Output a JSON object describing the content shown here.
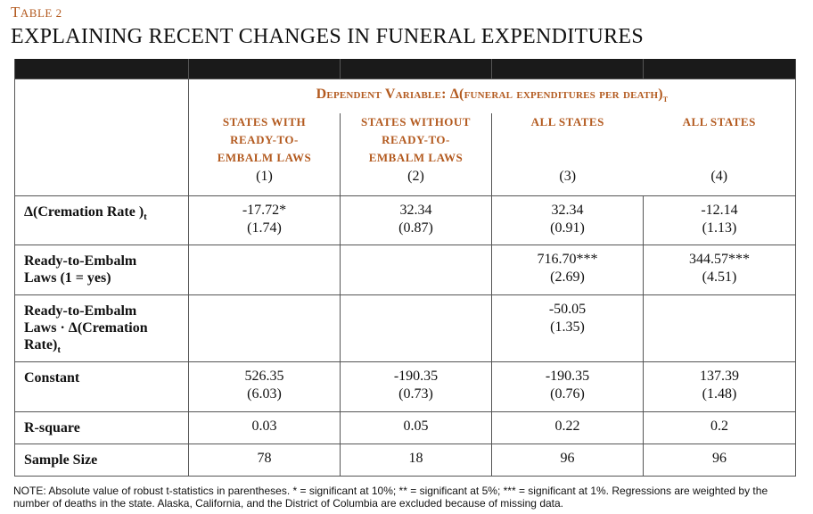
{
  "label": {
    "first": "T",
    "rest": "ABLE 2"
  },
  "title": "EXPLAINING RECENT CHANGES IN FUNERAL EXPENDITURES",
  "dependent_variable": {
    "text": "Dependent Variable: Δ(funeral expenditures per death)",
    "sub": "t"
  },
  "columns": [
    {
      "header": [
        "STATES WITH",
        "READY-TO-",
        "EMBALM LAWS"
      ],
      "number": "(1)"
    },
    {
      "header": [
        "STATES WITHOUT",
        "READY-TO-",
        "EMBALM LAWS"
      ],
      "number": "(2)"
    },
    {
      "header": [
        "ALL STATES"
      ],
      "number": "(3)"
    },
    {
      "header": [
        "ALL STATES"
      ],
      "number": "(4)"
    }
  ],
  "rows": [
    {
      "label_lines": [
        "Δ(Cremation Rate )"
      ],
      "label_sub": "t",
      "cells": [
        [
          "-17.72*",
          "(1.74)"
        ],
        [
          "32.34",
          "(0.87)"
        ],
        [
          "32.34",
          "(0.91)"
        ],
        [
          "-12.14",
          "(1.13)"
        ]
      ]
    },
    {
      "label_lines": [
        "Ready-to-Embalm",
        "Laws (1 = yes)"
      ],
      "label_sub": "",
      "cells": [
        [
          "",
          ""
        ],
        [
          "",
          ""
        ],
        [
          "716.70***",
          "(2.69)"
        ],
        [
          "344.57***",
          "(4.51)"
        ]
      ]
    },
    {
      "label_lines": [
        "Ready-to-Embalm",
        "Laws · Δ(Cremation",
        "Rate)"
      ],
      "label_sub": "t",
      "cells": [
        [
          "",
          ""
        ],
        [
          "",
          ""
        ],
        [
          "-50.05",
          "(1.35)"
        ],
        [
          "",
          ""
        ]
      ]
    },
    {
      "label_lines": [
        "Constant"
      ],
      "label_sub": "",
      "cells": [
        [
          "526.35",
          "(6.03)"
        ],
        [
          "-190.35",
          "(0.73)"
        ],
        [
          "-190.35",
          "(0.76)"
        ],
        [
          "137.39",
          "(1.48)"
        ]
      ]
    },
    {
      "label_lines": [
        "R-square"
      ],
      "label_sub": "",
      "cells": [
        [
          "0.03"
        ],
        [
          "0.05"
        ],
        [
          "0.22"
        ],
        [
          "0.2"
        ]
      ]
    },
    {
      "label_lines": [
        "Sample Size"
      ],
      "label_sub": "",
      "cells": [
        [
          "78"
        ],
        [
          "18"
        ],
        [
          "96"
        ],
        [
          "96"
        ]
      ]
    }
  ],
  "note": "NOTE: Absolute value of robust t-statistics in parentheses. * = significant at 10%; ** = significant at 5%; *** = significant at 1%. Regressions are weighted by the number of deaths in the state.  Alaska, California, and the District of Columbia are excluded because of missing data.",
  "colors": {
    "accent": "#b35a1f",
    "header_bar": "#1a1a1a"
  }
}
